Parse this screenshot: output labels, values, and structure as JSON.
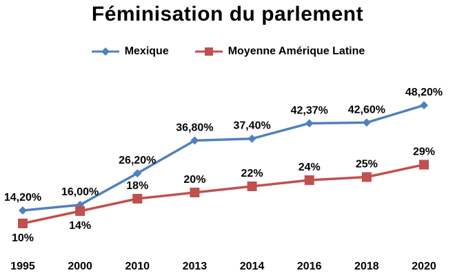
{
  "chart_data": {
    "type": "line",
    "title": "Féminisation du parlement",
    "categories": [
      "1995",
      "2000",
      "2010",
      "2013",
      "2014",
      "2016",
      "2018",
      "2020"
    ],
    "ylim": [
      0,
      60
    ],
    "grid": false,
    "legend_position": "top",
    "series": [
      {
        "name": "Mexique",
        "color": "#4F81BD",
        "marker": "diamond",
        "values": [
          14.2,
          16.0,
          26.2,
          36.8,
          37.4,
          42.37,
          42.6,
          48.2
        ],
        "labels": [
          "14,20%",
          "16,00%",
          "26,20%",
          "36,80%",
          "37,40%",
          "42,37%",
          "42,60%",
          "48,20%"
        ]
      },
      {
        "name": "Moyenne Amérique Latine",
        "color": "#C0504D",
        "marker": "square",
        "values": [
          10,
          14,
          18,
          20,
          22,
          24,
          25,
          29
        ],
        "labels": [
          "10%",
          "14%",
          "18%",
          "20%",
          "22%",
          "24%",
          "25%",
          "29%"
        ]
      }
    ]
  }
}
